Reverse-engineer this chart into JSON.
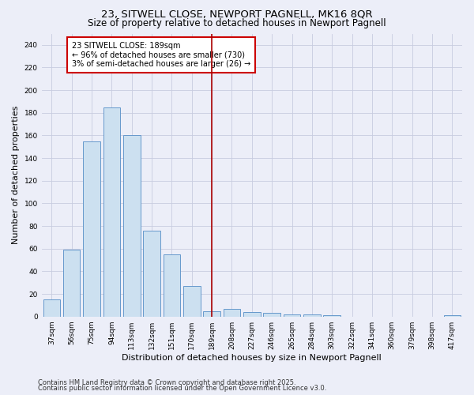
{
  "title_line1": "23, SITWELL CLOSE, NEWPORT PAGNELL, MK16 8QR",
  "title_line2": "Size of property relative to detached houses in Newport Pagnell",
  "xlabel": "Distribution of detached houses by size in Newport Pagnell",
  "ylabel": "Number of detached properties",
  "categories": [
    "37sqm",
    "56sqm",
    "75sqm",
    "94sqm",
    "113sqm",
    "132sqm",
    "151sqm",
    "170sqm",
    "189sqm",
    "208sqm",
    "227sqm",
    "246sqm",
    "265sqm",
    "284sqm",
    "303sqm",
    "322sqm",
    "341sqm",
    "360sqm",
    "379sqm",
    "398sqm",
    "417sqm"
  ],
  "bar_heights": [
    15,
    59,
    155,
    185,
    160,
    76,
    55,
    27,
    5,
    7,
    4,
    3,
    2,
    2,
    1,
    0,
    0,
    0,
    0,
    0,
    1
  ],
  "bar_color": "#cce0f0",
  "bar_edge_color": "#6699cc",
  "marker_index": 8,
  "marker_line_color": "#aa0000",
  "annotation_text": "23 SITWELL CLOSE: 189sqm\n← 96% of detached houses are smaller (730)\n3% of semi-detached houses are larger (26) →",
  "annotation_box_color": "#ffffff",
  "annotation_box_edge": "#cc0000",
  "ylim": [
    0,
    250
  ],
  "yticks": [
    0,
    20,
    40,
    60,
    80,
    100,
    120,
    140,
    160,
    180,
    200,
    220,
    240
  ],
  "grid_color": "#c8cce0",
  "background_color": "#eceef8",
  "footer_line1": "Contains HM Land Registry data © Crown copyright and database right 2025.",
  "footer_line2": "Contains public sector information licensed under the Open Government Licence v3.0.",
  "title_fontsize": 9.5,
  "subtitle_fontsize": 8.5,
  "axis_label_fontsize": 8,
  "tick_fontsize": 6.5,
  "annotation_fontsize": 7,
  "footer_fontsize": 6
}
